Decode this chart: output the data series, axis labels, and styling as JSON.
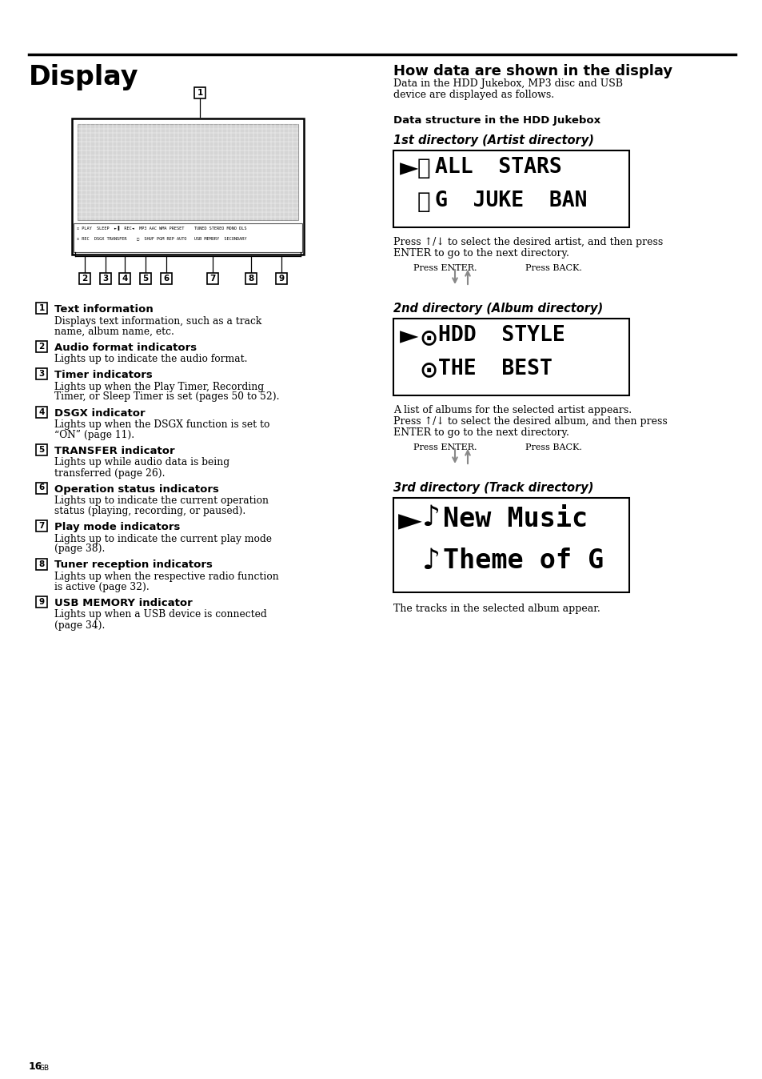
{
  "page_bg": "#ffffff",
  "left_title": "Display",
  "right_title": "How data are shown in the display",
  "right_sub1": "Data in the HDD Jukebox, MP3 disc and USB",
  "right_sub2": "device are displayed as follows.",
  "section_heading": "Data structure in the HDD Jukebox",
  "dir1_heading": "1st directory (Artist directory)",
  "dir2_heading": "2nd directory (Album directory)",
  "dir3_heading": "3rd directory (Track directory)",
  "artist_press_1": "Press ↑/↓ to select the desired artist, and then press",
  "artist_press_2": "ENTER to go to the next directory.",
  "album_desc_1": "A list of albums for the selected artist appears.",
  "album_desc_2": "Press ↑/↓ to select the desired album, and then press",
  "album_desc_3": "ENTER to go to the next directory.",
  "tracks_text": "The tracks in the selected album appear.",
  "press_enter": "Press ENTER.",
  "press_back": "Press BACK.",
  "status_row1": "☉ PLAY  SLEEP  ►▐  REC◄  MP3 AAC WMA PRESET    TUNED STEREO MONO DLS",
  "status_row2": "☉ REC  DSGX TRANSFER    □  SHUF PGM REP AUTO   USB MEMORY  SECONDARY",
  "indicators": [
    {
      "num": "1",
      "title": "Text information",
      "desc": [
        "Displays text information, such as a track",
        "name, album name, etc."
      ]
    },
    {
      "num": "2",
      "title": "Audio format indicators",
      "desc": [
        "Lights up to indicate the audio format."
      ]
    },
    {
      "num": "3",
      "title": "Timer indicators",
      "desc": [
        "Lights up when the Play Timer, Recording",
        "Timer, or Sleep Timer is set (pages 50 to 52)."
      ]
    },
    {
      "num": "4",
      "title": "DSGX indicator",
      "desc": [
        "Lights up when the DSGX function is set to",
        "“ON” (page 11)."
      ]
    },
    {
      "num": "5",
      "title": "TRANSFER indicator",
      "desc": [
        "Lights up while audio data is being",
        "transferred (page 26)."
      ]
    },
    {
      "num": "6",
      "title": "Operation status indicators",
      "desc": [
        "Lights up to indicate the current operation",
        "status (playing, recording, or paused)."
      ]
    },
    {
      "num": "7",
      "title": "Play mode indicators",
      "desc": [
        "Lights up to indicate the current play mode",
        "(page 38)."
      ]
    },
    {
      "num": "8",
      "title": "Tuner reception indicators",
      "desc": [
        "Lights up when the respective radio function",
        "is active (page 32)."
      ]
    },
    {
      "num": "9",
      "title": "USB MEMORY indicator",
      "desc": [
        "Lights up when a USB device is connected",
        "(page 34)."
      ]
    }
  ],
  "page_number": "16",
  "page_suffix": "GB"
}
